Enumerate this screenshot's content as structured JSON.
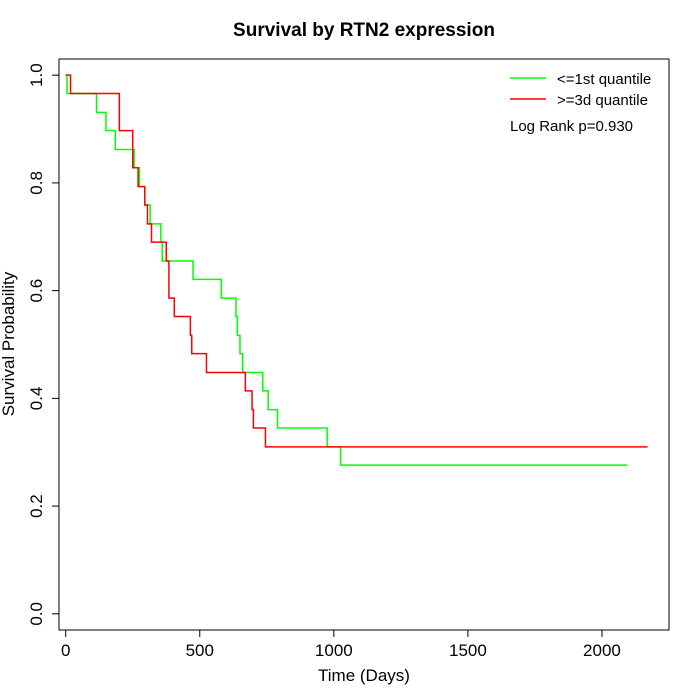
{
  "chart_data": {
    "type": "line",
    "title": "Survival by RTN2 expression",
    "xlabel": "Time (Days)",
    "ylabel": "Survival Probability",
    "xlim": [
      -25,
      2250
    ],
    "ylim": [
      -0.03,
      1.03
    ],
    "xticks": [
      0,
      500,
      1000,
      1500,
      2000
    ],
    "yticks": [
      0.0,
      0.2,
      0.4,
      0.6,
      0.8,
      1.0
    ],
    "xtick_labels": [
      "0",
      "500",
      "1000",
      "1500",
      "2000"
    ],
    "ytick_labels": [
      "0.0",
      "0.2",
      "0.4",
      "0.6",
      "0.8",
      "1.0"
    ],
    "grid": false,
    "legend_position": "top-right",
    "annotation": "Log Rank p=0.930",
    "series": [
      {
        "name": "<=1st quantile",
        "color": "#00ff00",
        "step": true,
        "x": [
          0,
          5,
          115,
          150,
          185,
          255,
          275,
          295,
          315,
          355,
          360,
          475,
          580,
          635,
          640,
          650,
          660,
          665,
          735,
          755,
          790,
          975,
          1025,
          2095
        ],
        "y": [
          1.0,
          0.966,
          0.931,
          0.897,
          0.862,
          0.828,
          0.793,
          0.759,
          0.724,
          0.69,
          0.655,
          0.621,
          0.586,
          0.552,
          0.517,
          0.483,
          0.448,
          0.448,
          0.414,
          0.379,
          0.345,
          0.31,
          0.276,
          0.276
        ]
      },
      {
        "name": ">=3d quantile",
        "color": "#ff0000",
        "step": true,
        "x": [
          0,
          18,
          200,
          250,
          270,
          295,
          305,
          320,
          375,
          385,
          405,
          465,
          470,
          525,
          670,
          695,
          700,
          715,
          745,
          2170
        ],
        "y": [
          1.0,
          0.966,
          0.897,
          0.828,
          0.793,
          0.759,
          0.724,
          0.69,
          0.655,
          0.586,
          0.552,
          0.517,
          0.483,
          0.448,
          0.414,
          0.379,
          0.345,
          0.345,
          0.31,
          0.31
        ]
      }
    ]
  }
}
